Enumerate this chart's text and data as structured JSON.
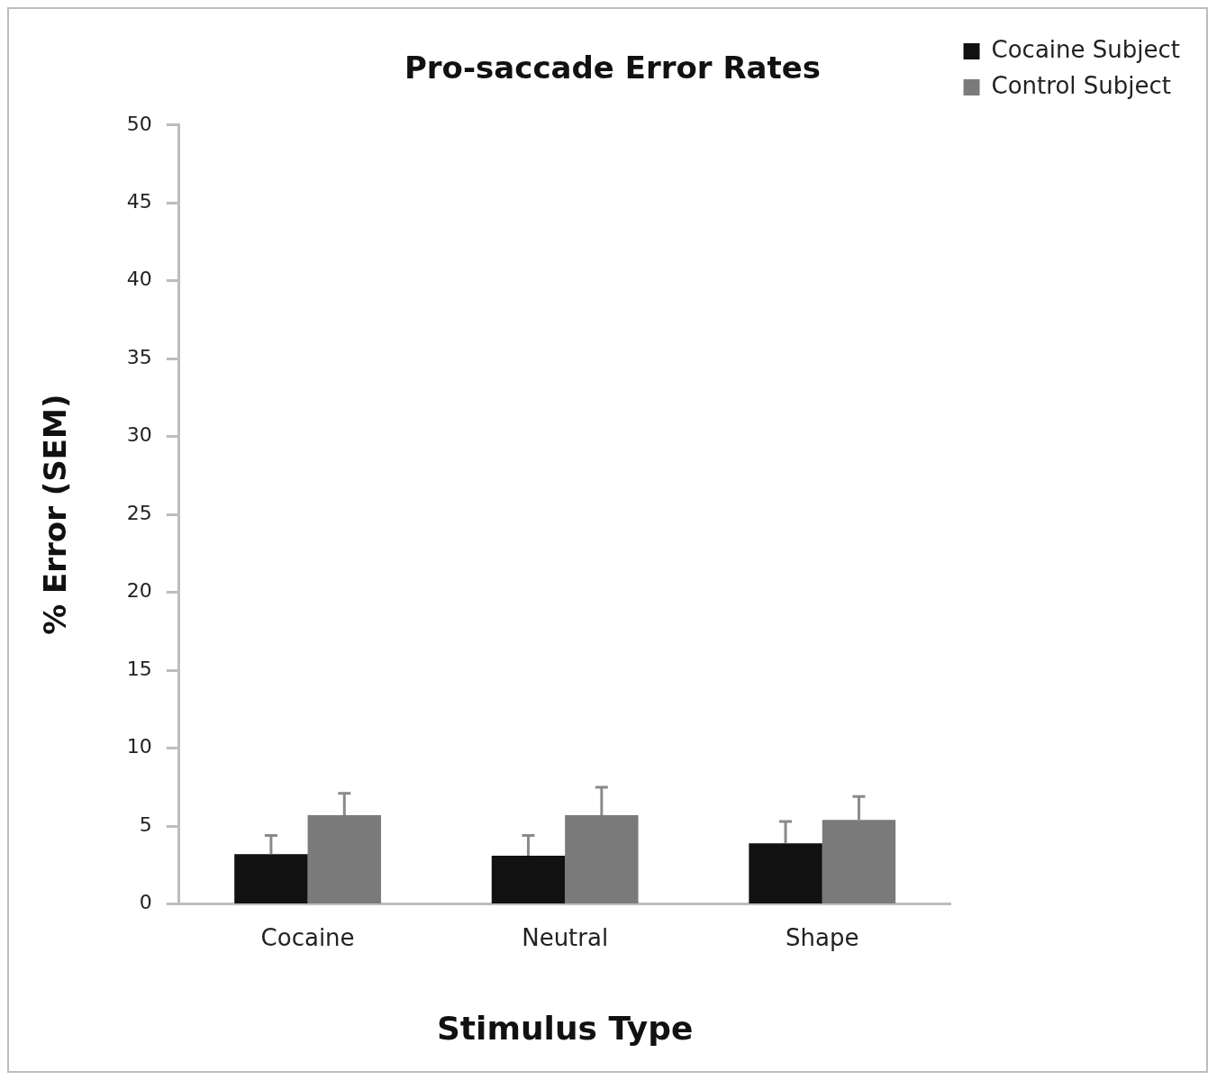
{
  "chart_data": {
    "type": "bar",
    "title": "Pro-saccade Error Rates",
    "xlabel": "Stimulus Type",
    "ylabel": "% Error (SEM)",
    "categories": [
      "Cocaine",
      "Neutral",
      "Shape"
    ],
    "series": [
      {
        "name": "Cocaine Subject",
        "color": "#111111",
        "values": [
          3.2,
          3.1,
          3.9
        ],
        "errors": [
          [
            3.2,
            4.4
          ],
          [
            3.1,
            4.4
          ],
          [
            3.9,
            5.3
          ]
        ]
      },
      {
        "name": "Control Subject",
        "color": "#7a7a7a",
        "values": [
          5.7,
          5.7,
          5.4
        ],
        "errors": [
          [
            5.7,
            7.1
          ],
          [
            5.7,
            7.5
          ],
          [
            5.4,
            6.9
          ]
        ]
      }
    ],
    "ylim": [
      0,
      50
    ],
    "yticks": [
      0,
      5,
      10,
      15,
      20,
      25,
      30,
      35,
      40,
      45,
      50
    ],
    "grid": false,
    "legend": "top right"
  }
}
